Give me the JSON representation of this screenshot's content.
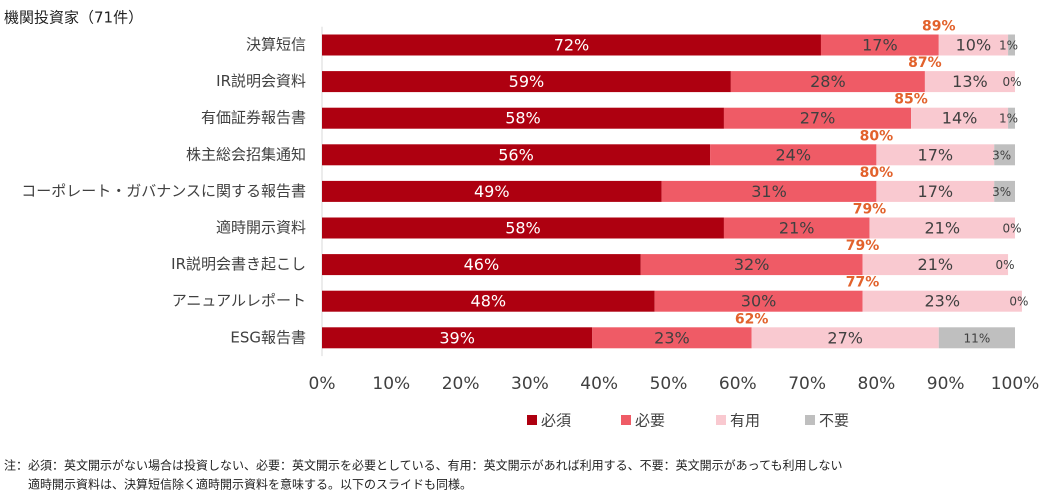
{
  "chart_data": {
    "type": "stacked_barh",
    "title": "機関投資家（71件）",
    "categories": [
      "決算短信",
      "IR説明会資料",
      "有価証券報告書",
      "株主総会招集通知",
      "コーポレート・ガバナンスに関する報告書",
      "適時開示資料",
      "IR説明会書き起こし",
      "アニュアルレポート",
      "ESG報告書"
    ],
    "series": [
      {
        "name": "必須",
        "color": "#ae0010",
        "values": [
          72,
          59,
          58,
          56,
          49,
          58,
          46,
          48,
          39
        ],
        "value_labels": [
          "72%",
          "59%",
          "58%",
          "56%",
          "49%",
          "58%",
          "46%",
          "48%",
          "39%"
        ]
      },
      {
        "name": "必要",
        "color": "#ef5b66",
        "values": [
          17,
          28,
          27,
          24,
          31,
          21,
          32,
          30,
          23
        ],
        "value_labels": [
          "17%",
          "28%",
          "27%",
          "24%",
          "31%",
          "21%",
          "32%",
          "30%",
          "23%"
        ]
      },
      {
        "name": "有用",
        "color": "#f9c9d0",
        "values": [
          10,
          13,
          14,
          17,
          17,
          21,
          21,
          23,
          27
        ],
        "value_labels": [
          "10%",
          "13%",
          "14%",
          "17%",
          "17%",
          "21%",
          "21%",
          "23%",
          "27%"
        ]
      },
      {
        "name": "不要",
        "color": "#bfbfbf",
        "values": [
          1,
          0,
          1,
          3,
          3,
          0,
          0,
          0,
          11
        ],
        "value_labels": [
          "1%",
          "0%",
          "1%",
          "3%",
          "3%",
          "0%",
          "0%",
          "0%",
          "11%"
        ]
      }
    ],
    "annotations": [
      "89%",
      "87%",
      "85%",
      "80%",
      "80%",
      "79%",
      "79%",
      "77%",
      "62%"
    ],
    "annotation_color": "#e2622c",
    "xlim": [
      0,
      100
    ],
    "xticks": [
      {
        "value": 0,
        "label": "0%"
      },
      {
        "value": 10,
        "label": "10%"
      },
      {
        "value": 20,
        "label": "20%"
      },
      {
        "value": 30,
        "label": "30%"
      },
      {
        "value": 40,
        "label": "40%"
      },
      {
        "value": 50,
        "label": "50%"
      },
      {
        "value": 60,
        "label": "60%"
      },
      {
        "value": 70,
        "label": "70%"
      },
      {
        "value": 80,
        "label": "80%"
      },
      {
        "value": 90,
        "label": "90%"
      },
      {
        "value": 100,
        "label": "100%"
      }
    ],
    "grid": false,
    "notes": [
      "注：必須：英文開示がない場合は投資しない、必要：英文開示を必要としている、有用：英文開示があれば利用する、不要：英文開示があっても利用しない",
      "適時開示資料は、決算短信除く適時開示資料を意味する。以下のスライドも同様。"
    ]
  }
}
